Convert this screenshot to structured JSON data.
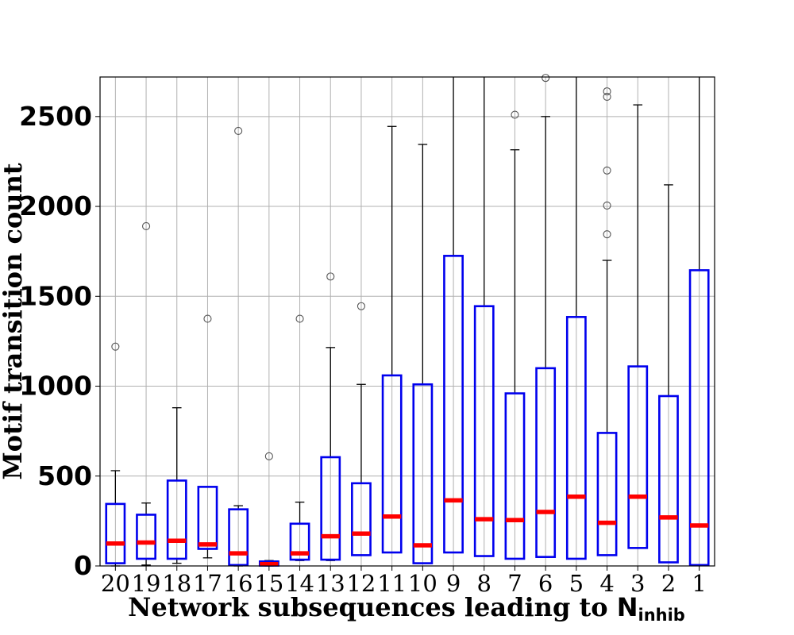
{
  "chart_data": {
    "type": "box",
    "title": "",
    "xlabel_main": "Network subsequences leading to ",
    "xlabel_symbol": "N",
    "xlabel_subscript": "inhib",
    "ylabel": "Motif transition count",
    "ylim": [
      0,
      2720
    ],
    "yticks": [
      0,
      500,
      1000,
      1500,
      2000,
      2500
    ],
    "grid": true,
    "colors": {
      "box": "#0000ee",
      "median": "#ff0000",
      "whisker": "#000000",
      "flier": "#555555",
      "grid": "#b0b0b0"
    },
    "boxes": [
      {
        "label": "20",
        "whislo": 0,
        "q1": 15,
        "med": 125,
        "q3": 345,
        "whishi": 530,
        "fliers": [
          1220
        ]
      },
      {
        "label": "19",
        "whislo": 5,
        "q1": 40,
        "med": 130,
        "q3": 285,
        "whishi": 350,
        "fliers": [
          1890
        ]
      },
      {
        "label": "18",
        "whislo": 15,
        "q1": 40,
        "med": 140,
        "q3": 475,
        "whishi": 880,
        "fliers": []
      },
      {
        "label": "17",
        "whislo": 45,
        "q1": 95,
        "med": 120,
        "q3": 440,
        "whishi": 440,
        "fliers": [
          1375
        ]
      },
      {
        "label": "16",
        "whislo": 0,
        "q1": 5,
        "med": 70,
        "q3": 315,
        "whishi": 335,
        "fliers": [
          2420
        ]
      },
      {
        "label": "15",
        "whislo": 0,
        "q1": 2,
        "med": 10,
        "q3": 25,
        "whishi": 30,
        "fliers": [
          610
        ]
      },
      {
        "label": "14",
        "whislo": 30,
        "q1": 35,
        "med": 70,
        "q3": 235,
        "whishi": 355,
        "fliers": [
          1375
        ]
      },
      {
        "label": "13",
        "whislo": 30,
        "q1": 35,
        "med": 165,
        "q3": 605,
        "whishi": 1215,
        "fliers": [
          1610
        ]
      },
      {
        "label": "12",
        "whislo": 60,
        "q1": 60,
        "med": 180,
        "q3": 460,
        "whishi": 1010,
        "fliers": [
          1445
        ]
      },
      {
        "label": "11",
        "whislo": 75,
        "q1": 75,
        "med": 275,
        "q3": 1060,
        "whishi": 2445,
        "fliers": []
      },
      {
        "label": "10",
        "whislo": 15,
        "q1": 15,
        "med": 115,
        "q3": 1010,
        "whishi": 2345,
        "fliers": []
      },
      {
        "label": "9",
        "whislo": 75,
        "q1": 75,
        "med": 365,
        "q3": 1725,
        "whishi": 2720,
        "fliers": []
      },
      {
        "label": "8",
        "whislo": 55,
        "q1": 55,
        "med": 260,
        "q3": 1445,
        "whishi": 2720,
        "fliers": []
      },
      {
        "label": "7",
        "whislo": 40,
        "q1": 40,
        "med": 255,
        "q3": 960,
        "whishi": 2315,
        "fliers": [
          2510
        ]
      },
      {
        "label": "6",
        "whislo": 50,
        "q1": 50,
        "med": 300,
        "q3": 1100,
        "whishi": 2500,
        "fliers": [
          2715
        ]
      },
      {
        "label": "5",
        "whislo": 40,
        "q1": 40,
        "med": 385,
        "q3": 1385,
        "whishi": 2720,
        "fliers": []
      },
      {
        "label": "4",
        "whislo": 60,
        "q1": 60,
        "med": 240,
        "q3": 740,
        "whishi": 1700,
        "fliers": [
          1845,
          2005,
          2200,
          2610,
          2640
        ]
      },
      {
        "label": "3",
        "whislo": 100,
        "q1": 100,
        "med": 385,
        "q3": 1110,
        "whishi": 2565,
        "fliers": []
      },
      {
        "label": "2",
        "whislo": 20,
        "q1": 20,
        "med": 270,
        "q3": 945,
        "whishi": 2120,
        "fliers": []
      },
      {
        "label": "1",
        "whislo": 5,
        "q1": 5,
        "med": 225,
        "q3": 1645,
        "whishi": 2720,
        "fliers": []
      }
    ]
  }
}
